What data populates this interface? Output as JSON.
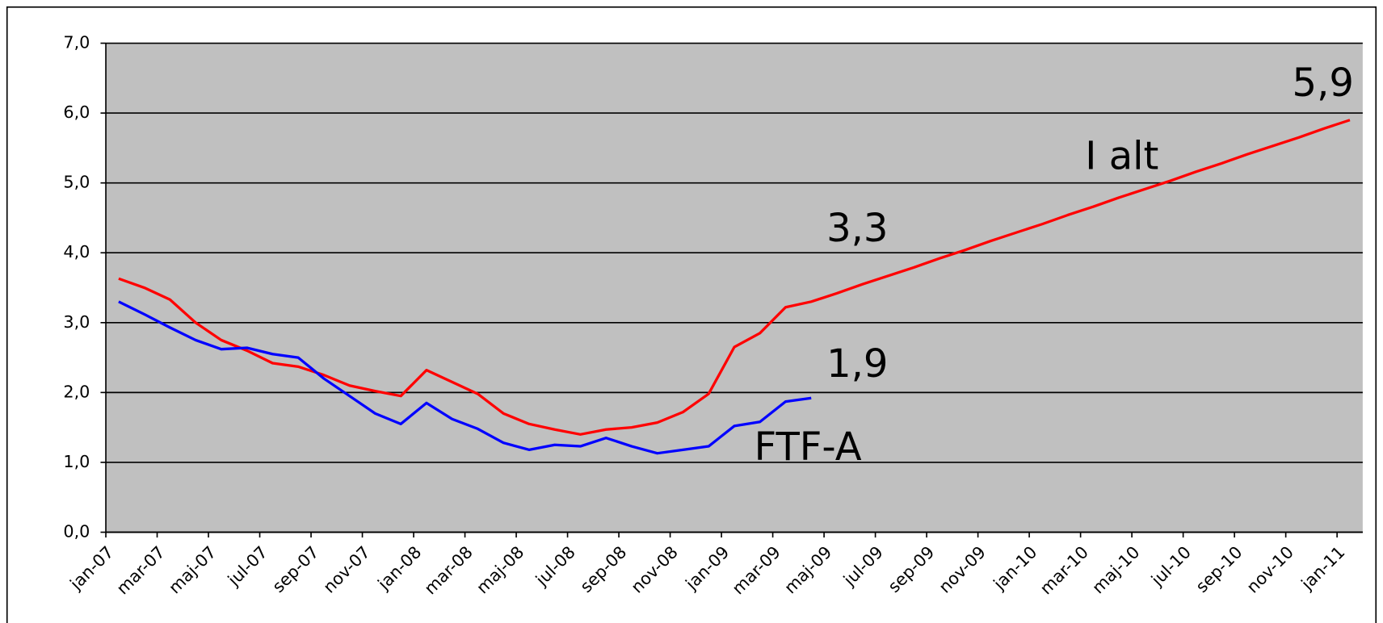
{
  "chart_data": {
    "type": "line",
    "categories": [
      "jan-07",
      null,
      "mar-07",
      null,
      "maj-07",
      null,
      "jul-07",
      null,
      "sep-07",
      null,
      "nov-07",
      null,
      "jan-08",
      null,
      "mar-08",
      null,
      "maj-08",
      null,
      "jul-08",
      null,
      "sep-08",
      null,
      "nov-08",
      null,
      "jan-09",
      null,
      "mar-09",
      null,
      "maj-09",
      null,
      "jul-09",
      null,
      "sep-09",
      null,
      "nov-09",
      null,
      "jan-10",
      null,
      "mar-10",
      null,
      "maj-10",
      null,
      "jul-10",
      null,
      "sep-10",
      null,
      "nov-10",
      null,
      "jan-11"
    ],
    "series": [
      {
        "name": "I alt",
        "color": "#ff0000",
        "values": [
          3.63,
          3.5,
          3.33,
          3.0,
          2.75,
          2.6,
          2.42,
          2.37,
          2.25,
          2.1,
          2.02,
          1.95,
          2.32,
          2.15,
          1.98,
          1.7,
          1.55,
          1.47,
          1.4,
          1.47,
          1.5,
          1.57,
          1.72,
          1.98,
          2.65,
          2.85,
          3.22,
          3.3,
          3.42,
          3.55,
          3.67,
          3.79,
          3.92,
          4.04,
          4.17,
          4.29,
          4.41,
          4.54,
          4.66,
          4.79,
          4.91,
          5.03,
          5.16,
          5.28,
          5.41,
          5.53,
          5.65,
          5.78,
          5.9
        ]
      },
      {
        "name": "FTF-A",
        "color": "#0000ff",
        "values": [
          3.3,
          3.12,
          2.93,
          2.75,
          2.62,
          2.64,
          2.55,
          2.5,
          2.2,
          1.95,
          1.7,
          1.55,
          1.85,
          1.62,
          1.48,
          1.28,
          1.18,
          1.25,
          1.23,
          1.35,
          1.23,
          1.13,
          1.18,
          1.23,
          1.52,
          1.58,
          1.87,
          1.92,
          null,
          null,
          null,
          null,
          null,
          null,
          null,
          null,
          null,
          null,
          null,
          null,
          null,
          null,
          null,
          null,
          null,
          null,
          null,
          null,
          null
        ]
      }
    ],
    "annotations": [
      "5,9",
      "I alt",
      "3,3",
      "1,9",
      "FTF-A"
    ],
    "ylim": [
      0,
      7
    ],
    "yticks": [
      {
        "value": 0,
        "label": "0,0"
      },
      {
        "value": 1,
        "label": "1,0"
      },
      {
        "value": 2,
        "label": "2,0"
      },
      {
        "value": 3,
        "label": "3,0"
      },
      {
        "value": 4,
        "label": "4,0"
      },
      {
        "value": 5,
        "label": "5,0"
      },
      {
        "value": 6,
        "label": "6,0"
      },
      {
        "value": 7,
        "label": "7,0"
      }
    ],
    "grid": true
  }
}
